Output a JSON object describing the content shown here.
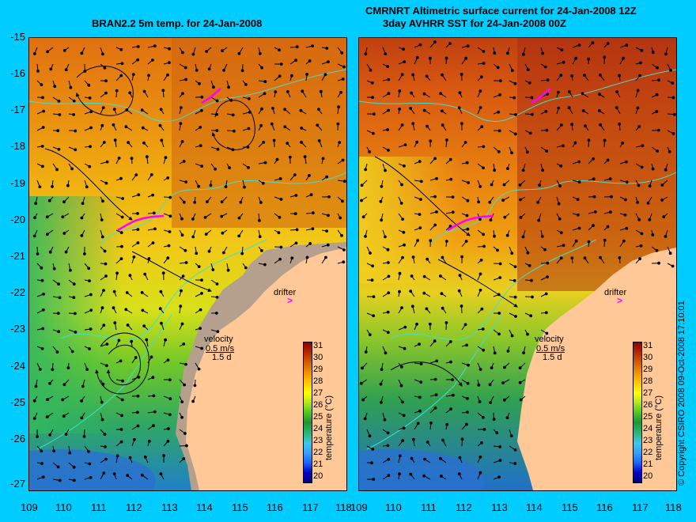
{
  "titles": {
    "left": "BRAN2.2 5m temp. for 24-Jan-2008",
    "right_line1": "CMRNRT Altimetric surface current for 24-Jan-2008 12Z",
    "right_line2": "3day AVHRR SST for 24-Jan-2008 00Z"
  },
  "axes": {
    "latitude_labels": [
      "-15",
      "-16",
      "-17",
      "-18",
      "-19",
      "-20",
      "-21",
      "-22",
      "-23",
      "-24",
      "-25",
      "-26",
      "-27"
    ],
    "longitude_labels": [
      "109",
      "110",
      "111",
      "112",
      "113",
      "114",
      "115",
      "116",
      "117",
      "118"
    ]
  },
  "annotations": {
    "drifter": "drifter",
    "drifter_marker": ">",
    "velocity": "velocity",
    "scale_speed": "0.5 m/s",
    "scale_days": "1.5 d"
  },
  "colorbar": {
    "title": "temperature (°C)",
    "ticks": [
      "31",
      "30",
      "29",
      "28",
      "27",
      "26",
      "25",
      "24",
      "23",
      "22",
      "21",
      "20"
    ]
  },
  "copyright": "© Copyright CSIRO 2008   09-Oct-2008 17:10:01",
  "colors": {
    "background": "#00ccff",
    "land": "#ffc896",
    "coast_shelf": "#b4a08c",
    "bathymetry_contour": "#40e0d0",
    "drifter_track": "#ff00ff",
    "arrows": "#000000"
  }
}
